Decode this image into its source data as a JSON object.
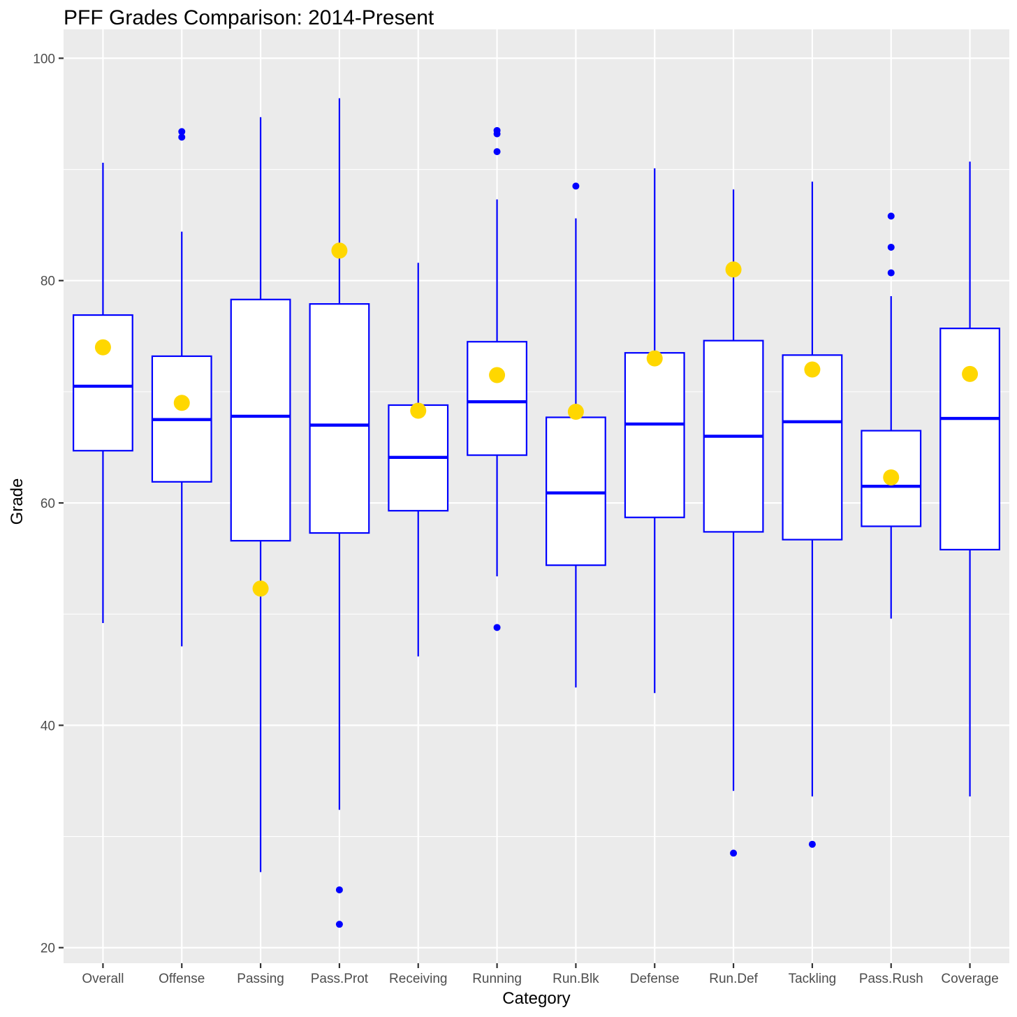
{
  "chart_data": {
    "type": "box",
    "title": "PFF Grades Comparison: 2014-Present",
    "xlabel": "Category",
    "ylabel": "Grade",
    "ylim": [
      18.6,
      102.6
    ],
    "yticks": [
      20,
      40,
      60,
      80,
      100
    ],
    "categories": [
      "Overall",
      "Offense",
      "Passing",
      "Pass.Prot",
      "Receiving",
      "Running",
      "Run.Blk",
      "Defense",
      "Run.Def",
      "Tackling",
      "Pass.Rush",
      "Coverage"
    ],
    "boxes": [
      {
        "category": "Overall",
        "lower_whisker": 49.2,
        "q1": 64.7,
        "median": 70.5,
        "q3": 76.9,
        "upper_whisker": 90.6,
        "outliers": []
      },
      {
        "category": "Offense",
        "lower_whisker": 47.1,
        "q1": 61.9,
        "median": 67.5,
        "q3": 73.2,
        "upper_whisker": 84.4,
        "outliers": [
          93.4,
          92.9
        ]
      },
      {
        "category": "Passing",
        "lower_whisker": 26.8,
        "q1": 56.6,
        "median": 67.8,
        "q3": 78.3,
        "upper_whisker": 94.7,
        "outliers": []
      },
      {
        "category": "Pass.Prot",
        "lower_whisker": 32.4,
        "q1": 57.3,
        "median": 67.0,
        "q3": 77.9,
        "upper_whisker": 96.4,
        "outliers": [
          25.2,
          22.1
        ]
      },
      {
        "category": "Receiving",
        "lower_whisker": 46.2,
        "q1": 59.3,
        "median": 64.1,
        "q3": 68.8,
        "upper_whisker": 81.6,
        "outliers": []
      },
      {
        "category": "Running",
        "lower_whisker": 53.4,
        "q1": 64.3,
        "median": 69.1,
        "q3": 74.5,
        "upper_whisker": 87.3,
        "outliers": [
          93.5,
          93.2,
          91.6,
          48.8
        ]
      },
      {
        "category": "Run.Blk",
        "lower_whisker": 43.4,
        "q1": 54.4,
        "median": 60.9,
        "q3": 67.7,
        "upper_whisker": 85.6,
        "outliers": [
          88.5
        ]
      },
      {
        "category": "Defense",
        "lower_whisker": 42.9,
        "q1": 58.7,
        "median": 67.1,
        "q3": 73.5,
        "upper_whisker": 90.1,
        "outliers": []
      },
      {
        "category": "Run.Def",
        "lower_whisker": 34.1,
        "q1": 57.4,
        "median": 66.0,
        "q3": 74.6,
        "upper_whisker": 88.2,
        "outliers": [
          28.5
        ]
      },
      {
        "category": "Tackling",
        "lower_whisker": 33.6,
        "q1": 56.7,
        "median": 67.3,
        "q3": 73.3,
        "upper_whisker": 88.9,
        "outliers": [
          29.3
        ]
      },
      {
        "category": "Pass.Rush",
        "lower_whisker": 49.6,
        "q1": 57.9,
        "median": 61.5,
        "q3": 66.5,
        "upper_whisker": 78.6,
        "outliers": [
          85.8,
          83.0,
          80.7
        ]
      },
      {
        "category": "Coverage",
        "lower_whisker": 33.6,
        "q1": 55.8,
        "median": 67.6,
        "q3": 75.7,
        "upper_whisker": 90.7,
        "outliers": []
      }
    ],
    "highlight_points": [
      74.0,
      69.0,
      52.3,
      82.7,
      68.3,
      71.5,
      68.2,
      73.0,
      81.0,
      72.0,
      62.3,
      71.6
    ],
    "colors": {
      "panel_background": "#ebebeb",
      "grid": "#ffffff",
      "box_stroke": "#0000ff",
      "box_fill": "#ffffff",
      "outlier": "#0000ff",
      "highlight": "#ffd700",
      "tick_label": "#4d4d4d",
      "tick_mark": "#333333"
    }
  }
}
